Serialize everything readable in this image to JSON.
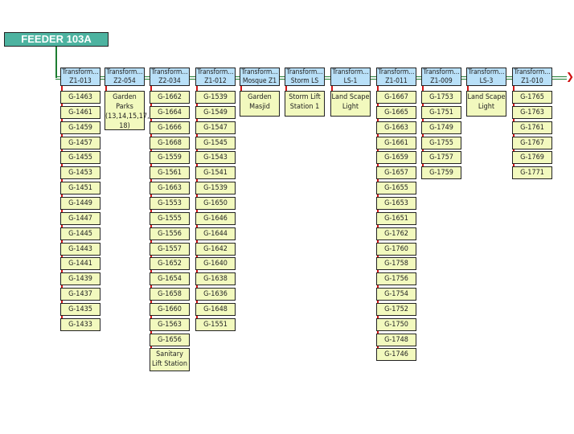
{
  "feeder": {
    "label": "FEEDER 103A"
  },
  "colors": {
    "feeder": "#4db3a0",
    "transformer": "#b9e0f8",
    "load": "#f2f9be",
    "trunk_line": "#1e7d32",
    "branch_line": "#d01818"
  },
  "transformers": [
    {
      "title": "Transform...",
      "name": "Z1-013",
      "children": [
        "G-1463",
        "G-1461",
        "G-1459",
        "G-1457",
        "G-1455",
        "G-1453",
        "G-1451",
        "G-1449",
        "G-1447",
        "G-1445",
        "G-1443",
        "G-1441",
        "G-1439",
        "G-1437",
        "G-1435",
        "G-1433"
      ]
    },
    {
      "title": "Transform...",
      "name": "Z2-054",
      "children": [
        "Garden Parks (13,14,15,17, 18)"
      ]
    },
    {
      "title": "Transform...",
      "name": "Z2-034",
      "children": [
        "G-1662",
        "G-1664",
        "G-1666",
        "G-1668",
        "G-1559",
        "G-1561",
        "G-1663",
        "G-1553",
        "G-1555",
        "G-1556",
        "G-1557",
        "G-1652",
        "G-1654",
        "G-1658",
        "G-1660",
        "G-1563",
        "G-1656",
        "Sanitary Lift Station"
      ]
    },
    {
      "title": "Transform...",
      "name": "Z1-012",
      "children": [
        "G-1539",
        "G-1549",
        "G-1547",
        "G-1545",
        "G-1543",
        "G-1541",
        "G-1539",
        "G-1650",
        "G-1646",
        "G-1644",
        "G-1642",
        "G-1640",
        "G-1638",
        "G-1636",
        "G-1648",
        "G-1551"
      ]
    },
    {
      "title": "Transform...",
      "name": "Mosque Z1",
      "children": [
        "Garden Masjid"
      ]
    },
    {
      "title": "Transform...",
      "name": "Storm LS",
      "children": [
        "Storm Lift Station 1"
      ]
    },
    {
      "title": "Transform...",
      "name": "LS-1",
      "children": [
        "Land Scape Light"
      ]
    },
    {
      "title": "Transform...",
      "name": "Z1-011",
      "children": [
        "G-1667",
        "G-1665",
        "G-1663",
        "G-1661",
        "G-1659",
        "G-1657",
        "G-1655",
        "G-1653",
        "G-1651",
        "G-1762",
        "G-1760",
        "G-1758",
        "G-1756",
        "G-1754",
        "G-1752",
        "G-1750",
        "G-1748",
        "G-1746"
      ]
    },
    {
      "title": "Transform...",
      "name": "Z1-009",
      "children": [
        "G-1753",
        "G-1751",
        "G-1749",
        "G-1755",
        "G-1757",
        "G-1759"
      ]
    },
    {
      "title": "Transform...",
      "name": "LS-3",
      "children": [
        "Land Scape Light"
      ]
    },
    {
      "title": "Transform...",
      "name": "Z1-010",
      "children": [
        "G-1765",
        "G-1763",
        "G-1761",
        "G-1767",
        "G-1769",
        "G-1771"
      ]
    }
  ]
}
